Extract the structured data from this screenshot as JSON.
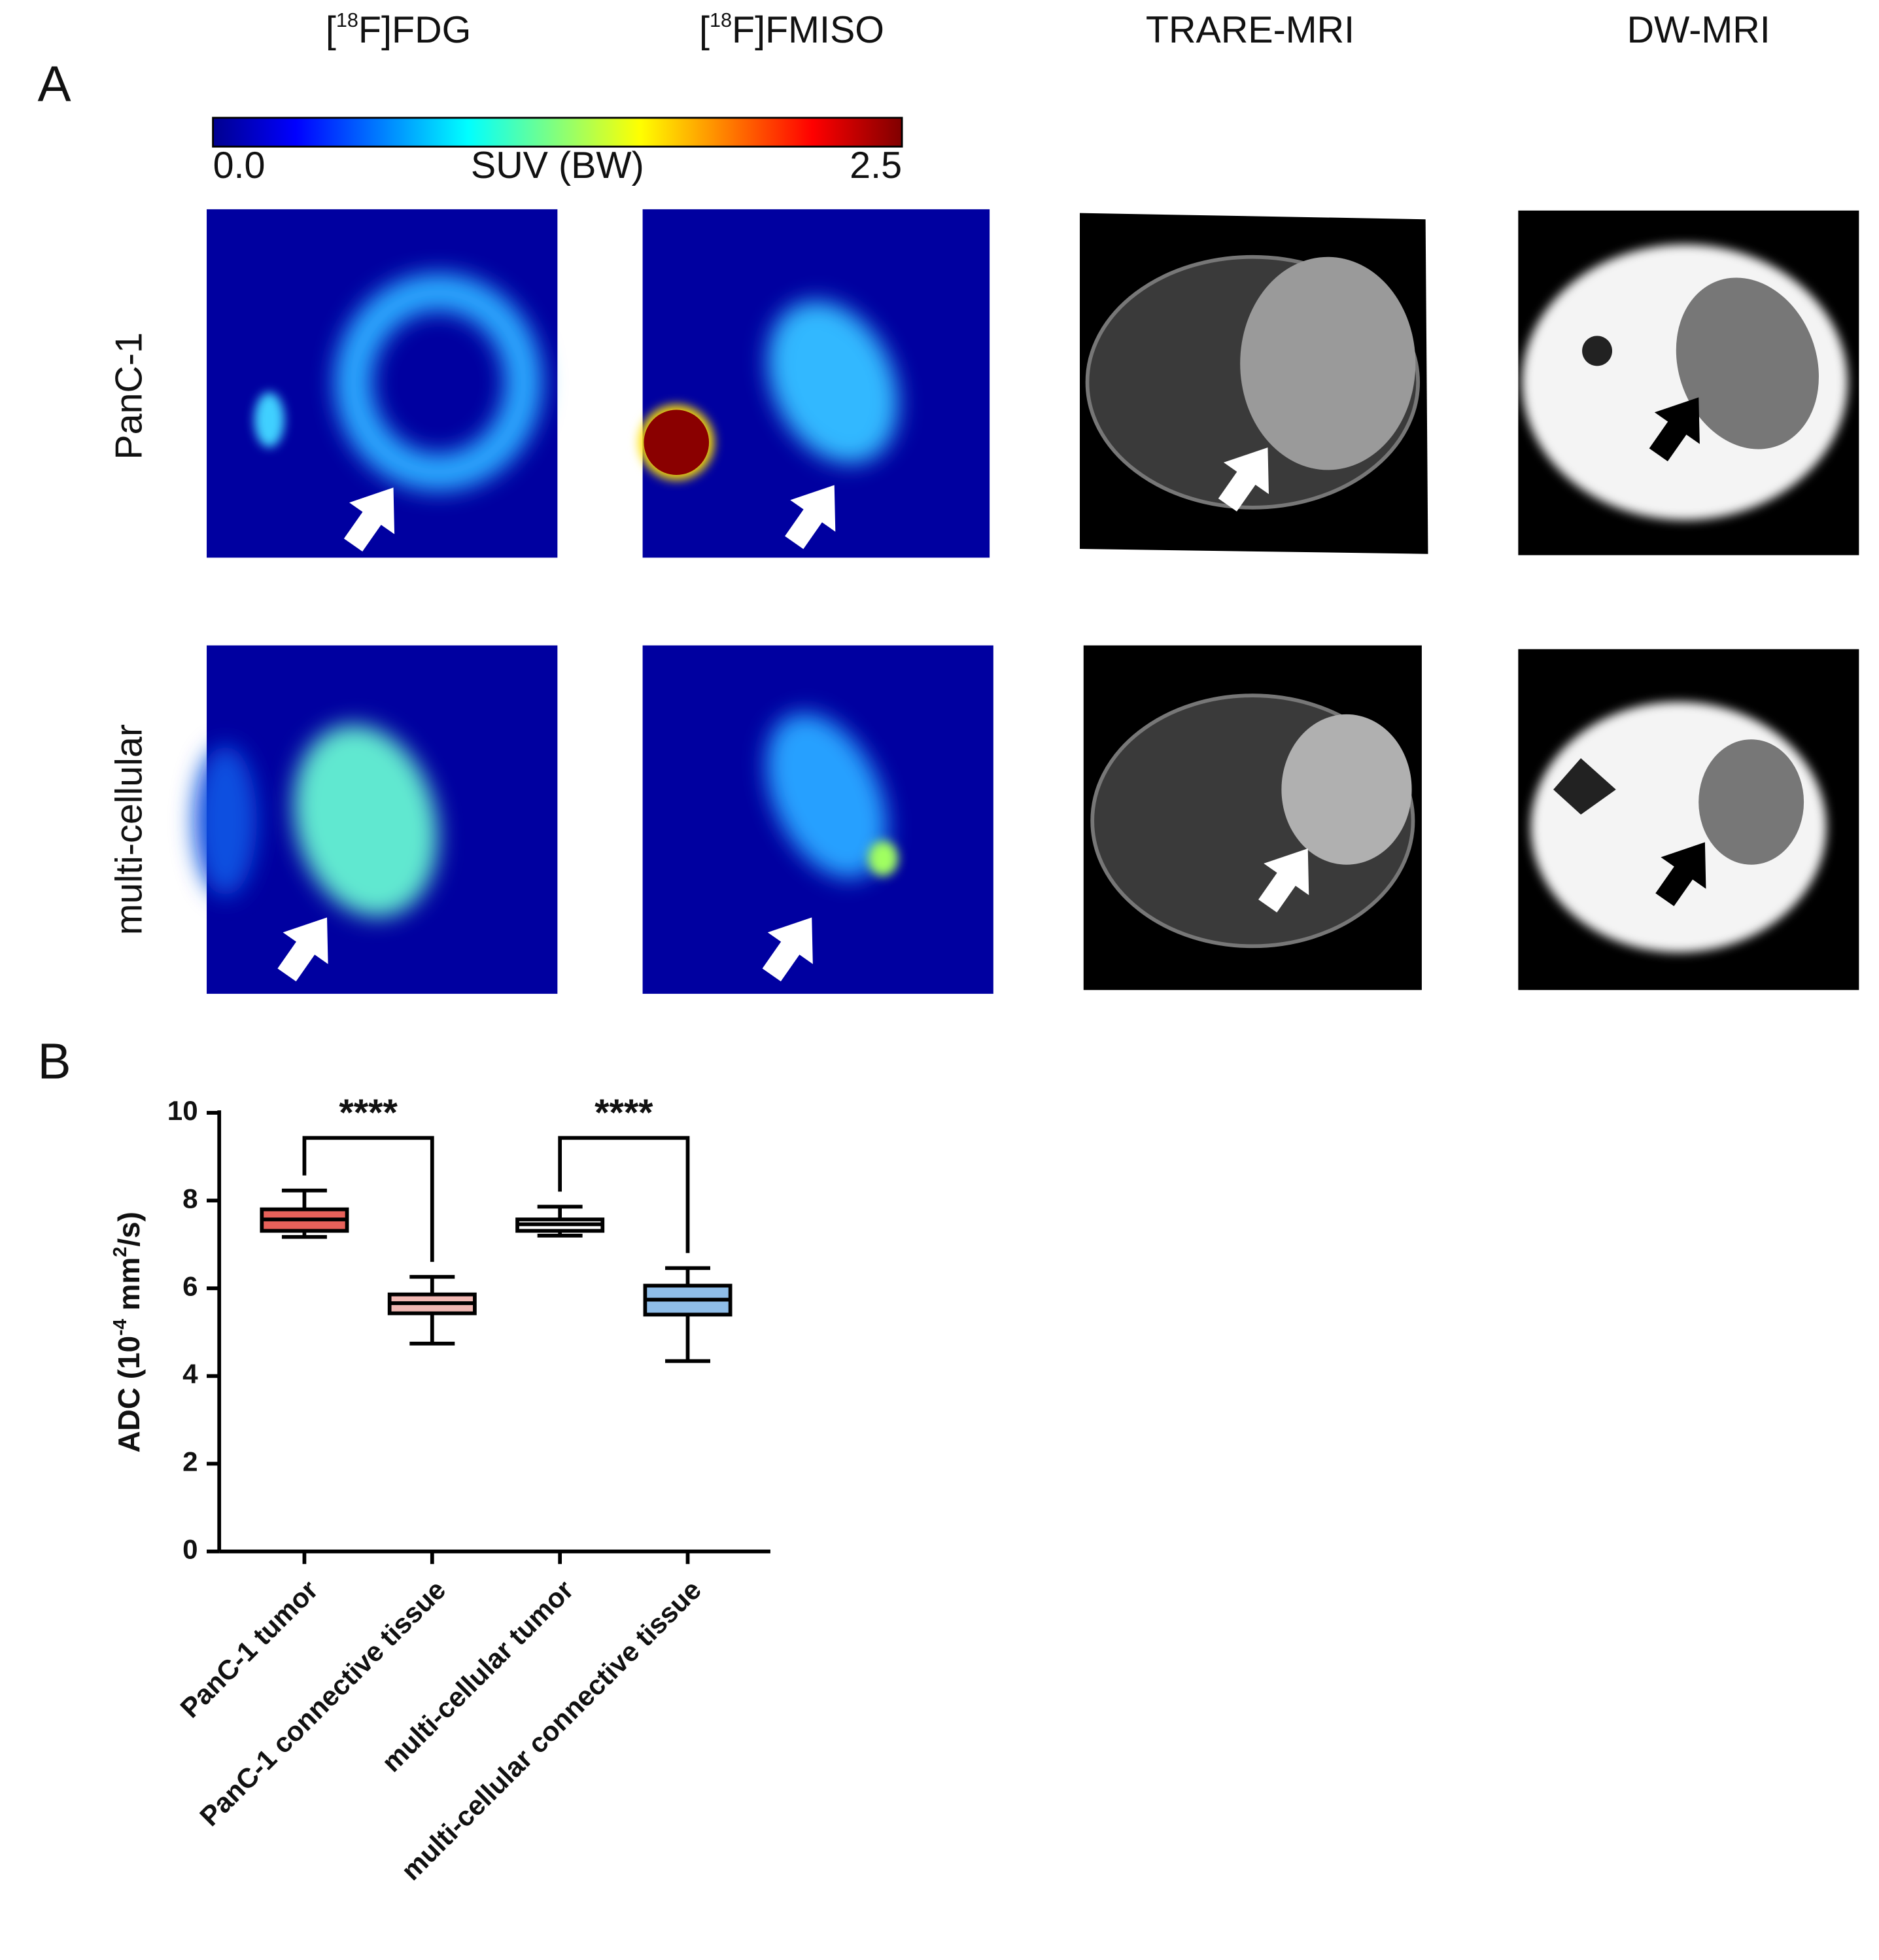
{
  "panel_a": {
    "letter": "A",
    "columns": [
      [
        "[",
        "18",
        "F]FDG"
      ],
      [
        "[",
        "18",
        "F]FMISO"
      ],
      [
        "TRARE-MRI"
      ],
      [
        "DW-MRI"
      ]
    ],
    "rows": [
      "PanC-1",
      "multi-cellular"
    ],
    "colorbar": {
      "label": "SUV (BW)",
      "ticks": [
        {
          "value": 0,
          "label": "0.0"
        },
        {
          "value": 2.5,
          "label": "2.5"
        }
      ]
    }
  },
  "panel_b": {
    "letter": "B"
  },
  "chart_data": {
    "type": "box",
    "y_label": [
      "ADC (10",
      "-4",
      " mm",
      "2",
      "/s)"
    ],
    "categories": [
      "PanC-1 tumor",
      "PanC-1 connective tissue",
      "multi-cellular tumor",
      "multi-cellular connective tissue"
    ],
    "boxes": [
      {
        "min": 7.17,
        "q1": 7.31,
        "median": 7.57,
        "q3": 7.8,
        "max": 8.23,
        "color": "#e8615a"
      },
      {
        "min": 4.74,
        "q1": 5.43,
        "median": 5.66,
        "q3": 5.86,
        "max": 6.26,
        "color": "#f2b8b3"
      },
      {
        "min": 7.2,
        "q1": 7.31,
        "median": 7.46,
        "q3": 7.57,
        "max": 7.86,
        "color": "#ffffff"
      },
      {
        "min": 4.34,
        "q1": 5.4,
        "median": 5.74,
        "q3": 6.06,
        "max": 6.46,
        "color": "#8fbde8"
      }
    ],
    "ylim": [
      0,
      10
    ],
    "yticks": [
      0,
      2,
      4,
      6,
      8,
      10
    ],
    "annotations": [
      {
        "text": "****",
        "from": 0,
        "to": 1
      },
      {
        "text": "****",
        "from": 2,
        "to": 3
      }
    ]
  }
}
